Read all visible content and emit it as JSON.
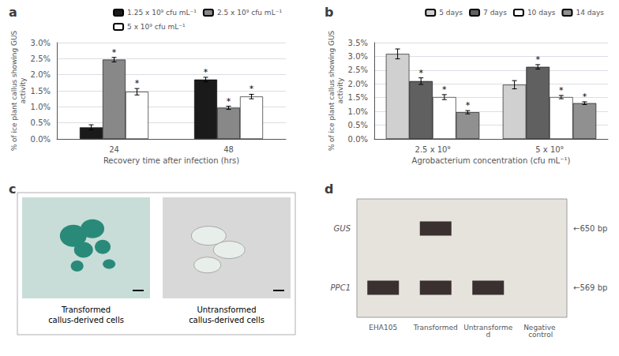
{
  "chart_data": [
    {
      "type": "bar",
      "title": "a",
      "categories": [
        "24",
        "48"
      ],
      "series": [
        {
          "name": "1.25 x 10⁹ cfu mL⁻¹",
          "color": "#1a1a1a",
          "values": [
            0.36,
            1.85
          ],
          "errors": [
            0.08,
            0.07
          ],
          "annotations": [
            null,
            "*"
          ]
        },
        {
          "name": "2.5 x 10⁹ cfu mL⁻¹",
          "color": "#888888",
          "values": [
            2.47,
            0.97
          ],
          "errors": [
            0.07,
            0.05
          ],
          "annotations": [
            "*",
            "*"
          ]
        },
        {
          "name": "5 x 10⁹ cfu mL⁻¹",
          "color": "#ffffff",
          "values": [
            1.47,
            1.32
          ],
          "errors": [
            0.1,
            0.07
          ],
          "annotations": [
            "*",
            "*"
          ]
        }
      ],
      "xlabel": "Recovery time after infection (hrs)",
      "ylabel": "% of ice plant callus showing GUS\nactivity",
      "ylim": [
        0,
        3.0
      ],
      "yticks": [
        {
          "value": 0.0,
          "label": "0.0%"
        },
        {
          "value": 0.5,
          "label": "0.5%"
        },
        {
          "value": 1.0,
          "label": "1.0%"
        },
        {
          "value": 1.5,
          "label": "1.5%"
        },
        {
          "value": 2.0,
          "label": "2.0%"
        },
        {
          "value": 2.5,
          "label": "2.5%"
        },
        {
          "value": 3.0,
          "label": "3.0%"
        }
      ],
      "grid": true,
      "legend": "upper right"
    },
    {
      "type": "bar",
      "title": "b",
      "categories": [
        "2.5 x 10⁹",
        "5 x 10⁹"
      ],
      "series": [
        {
          "name": "5 days",
          "color": "#d0d0d0",
          "values": [
            3.09,
            1.97
          ],
          "errors": [
            0.18,
            0.15
          ],
          "annotations": [
            null,
            null
          ]
        },
        {
          "name": "7 days",
          "color": "#606060",
          "values": [
            2.1,
            2.62
          ],
          "errors": [
            0.12,
            0.08
          ],
          "annotations": [
            "*",
            "*"
          ]
        },
        {
          "name": "10 days",
          "color": "#ffffff",
          "values": [
            1.52,
            1.52
          ],
          "errors": [
            0.09,
            0.06
          ],
          "annotations": [
            "*",
            "*"
          ]
        },
        {
          "name": "14 days",
          "color": "#909090",
          "values": [
            0.97,
            1.3
          ],
          "errors": [
            0.06,
            0.05
          ],
          "annotations": [
            "*",
            "*"
          ]
        }
      ],
      "xlabel": "Agrobacterium concentration (cfu mL⁻¹)",
      "ylabel": "% of ice plant callus showing GUS\nactivity",
      "ylim": [
        0,
        3.5
      ],
      "yticks": [
        {
          "value": 0.0,
          "label": "0.0%"
        },
        {
          "value": 0.5,
          "label": "0.5%"
        },
        {
          "value": 1.0,
          "label": "1.0%"
        },
        {
          "value": 1.5,
          "label": "1.5%"
        },
        {
          "value": 2.0,
          "label": "2.0%"
        },
        {
          "value": 2.5,
          "label": "2.5%"
        },
        {
          "value": 3.0,
          "label": "3.0%"
        },
        {
          "value": 3.5,
          "label": "3.5%"
        }
      ],
      "grid": true,
      "legend": "upper right"
    },
    {
      "type": "image",
      "title": "c",
      "annotations": [
        "Transformed\ncallus-derived cells",
        "Untransformed\ncallus-derived cells"
      ],
      "colors": [
        "#c8ddd8",
        "#d8d8d8"
      ]
    },
    {
      "type": "gel",
      "title": "d",
      "categories": [
        "EHA105",
        "Transformed",
        "Untransformed",
        "Negative control"
      ],
      "series": [
        {
          "name": "GUS",
          "values": [
            false,
            true,
            false,
            false
          ]
        },
        {
          "name": "PPC1",
          "values": [
            true,
            true,
            true,
            false
          ]
        }
      ],
      "annotations": [
        "←650 bp",
        "←569 bp"
      ],
      "color": "#3a3030"
    }
  ]
}
